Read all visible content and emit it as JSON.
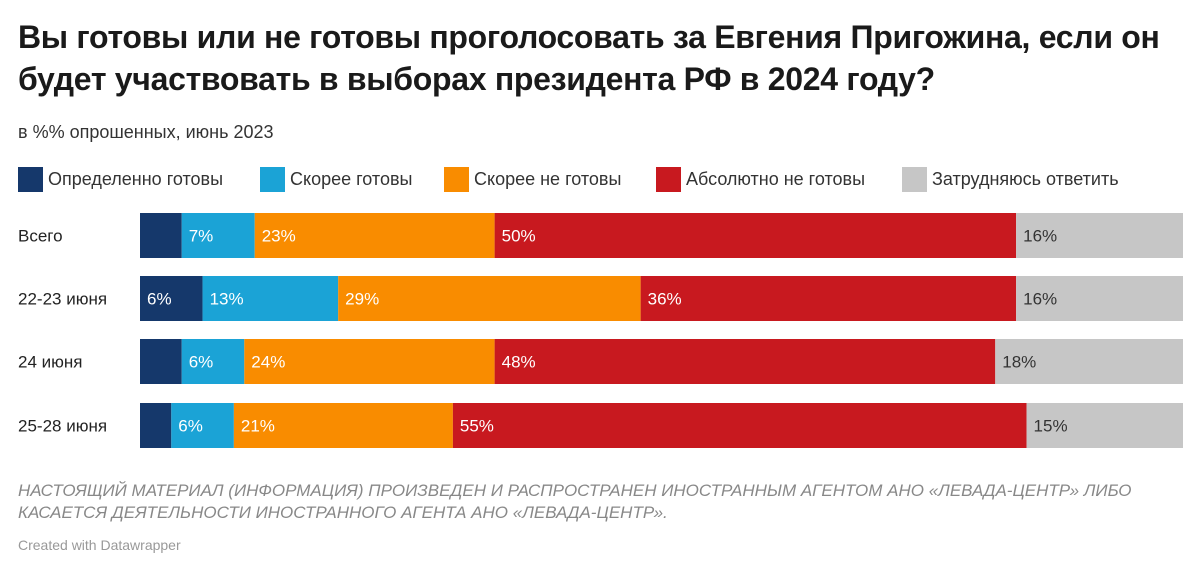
{
  "title": "Вы готовы или не готовы проголосовать за Евгения Пригожина, если он будет участвовать в выборах президента РФ в 2024 году?",
  "subtitle": "в %% опрошенных, июнь 2023",
  "footer_note": "НАСТОЯЩИЙ МАТЕРИАЛ (ИНФОРМАЦИЯ) ПРОИЗВЕДЕН И РАСПРОСТРАНЕН ИНОСТРАННЫМ АГЕНТОМ АНО «ЛЕВАДА-ЦЕНТР» ЛИБО КАСАЕТСЯ ДЕЯТЕЛЬНОСТИ ИНОСТРАННОГО АГЕНТА АНО «ЛЕВАДА-ЦЕНТР».",
  "credit": "Created with Datawrapper",
  "chart_data": {
    "type": "bar",
    "orientation": "horizontal",
    "stacked": true,
    "categories": [
      "Всего",
      "22-23 июня",
      "24 июня",
      "25-28 июня"
    ],
    "series": [
      {
        "name": "Определенно готовы",
        "color": "#15386b",
        "values": [
          4,
          6,
          4,
          3
        ],
        "labels": [
          "",
          "6%",
          "",
          ""
        ]
      },
      {
        "name": "Скорее готовы",
        "color": "#1ba3d6",
        "values": [
          7,
          13,
          6,
          6
        ],
        "labels": [
          "7%",
          "13%",
          "6%",
          "6%"
        ]
      },
      {
        "name": "Скорее не готовы",
        "color": "#f98c00",
        "values": [
          23,
          29,
          24,
          21
        ],
        "labels": [
          "23%",
          "29%",
          "24%",
          "21%"
        ]
      },
      {
        "name": "Абсолютно не готовы",
        "color": "#c8191f",
        "values": [
          50,
          36,
          48,
          55
        ],
        "labels": [
          "50%",
          "36%",
          "48%",
          "55%"
        ]
      },
      {
        "name": "Затрудняюсь ответить",
        "color": "#c6c6c6",
        "values": [
          16,
          16,
          18,
          15
        ],
        "labels": [
          "16%",
          "16%",
          "18%",
          "15%"
        ]
      }
    ],
    "legend_position": "top-left",
    "grid": false
  }
}
